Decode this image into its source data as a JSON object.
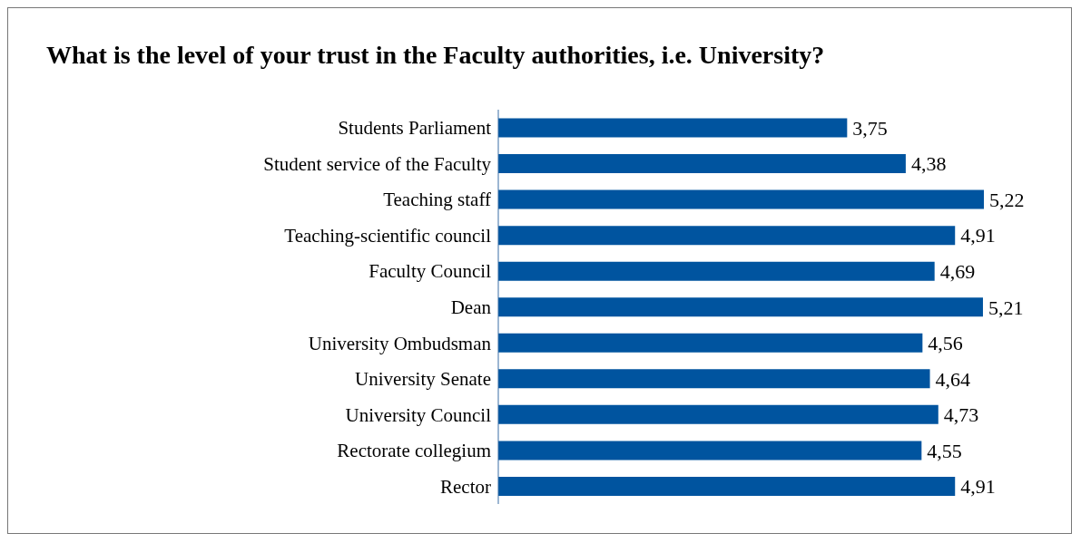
{
  "chart_data": {
    "type": "bar",
    "orientation": "horizontal",
    "title": "What is the level of your trust in the Faculty authorities, i.e. University?",
    "categories": [
      "Students Parliament",
      "Student service of the Faculty",
      "Teaching staff",
      "Teaching-scientific council",
      "Faculty Council",
      "Dean",
      "University Ombudsman",
      "University Senate",
      "University Council",
      "Rectorate collegium",
      "Rector"
    ],
    "values": [
      3.75,
      4.38,
      5.22,
      4.91,
      4.69,
      5.21,
      4.56,
      4.64,
      4.73,
      4.55,
      4.91
    ],
    "value_labels": [
      "3,75",
      "4,38",
      "5,22",
      "4,91",
      "4,69",
      "5,21",
      "4,56",
      "4,64",
      "4,73",
      "4,55",
      "4,91"
    ],
    "color": "#00549f",
    "grid": false,
    "legend": false
  }
}
